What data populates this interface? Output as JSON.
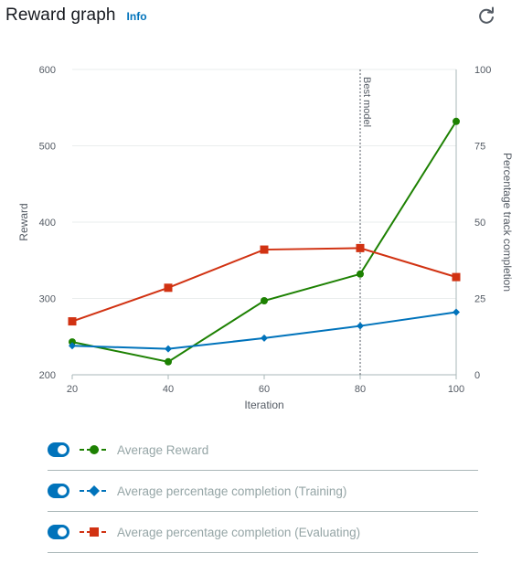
{
  "header": {
    "title": "Reward graph",
    "info_label": "Info"
  },
  "icons": {
    "refresh": "refresh-icon"
  },
  "legend": [
    {
      "id": "avg-reward",
      "label": "Average Reward",
      "color": "#1d8102",
      "marker": "circle",
      "enabled": true
    },
    {
      "id": "avg-pct-training",
      "label": "Average percentage completion (Training)",
      "color": "#0073bb",
      "marker": "diamond",
      "enabled": true
    },
    {
      "id": "avg-pct-evaluating",
      "label": "Average percentage completion (Evaluating)",
      "color": "#d13212",
      "marker": "square",
      "enabled": true
    }
  ],
  "chart_data": {
    "type": "line",
    "x": [
      20,
      40,
      60,
      80,
      100
    ],
    "xlabel": "Iteration",
    "ylabel": "Reward",
    "ylabel_right": "Percentage track completion",
    "xlim": [
      20,
      100
    ],
    "ylim": [
      200,
      600
    ],
    "ylim_right": [
      0,
      100
    ],
    "x_ticks": [
      20,
      40,
      60,
      80,
      100
    ],
    "y_ticks": [
      200,
      300,
      400,
      500,
      600
    ],
    "y_ticks_right": [
      0,
      25,
      50,
      75,
      100
    ],
    "grid": true,
    "annotation": {
      "x": 80,
      "label": "Best model"
    },
    "series": [
      {
        "name": "Average Reward",
        "axis": "left",
        "color": "#1d8102",
        "marker": "circle",
        "values": [
          243,
          217,
          297,
          332,
          532
        ]
      },
      {
        "name": "Average percentage completion (Training)",
        "axis": "right",
        "color": "#0073bb",
        "marker": "diamond",
        "values": [
          9.5,
          8.5,
          12,
          16,
          20.5
        ]
      },
      {
        "name": "Average percentage completion (Evaluating)",
        "axis": "right",
        "color": "#d13212",
        "marker": "square",
        "values": [
          17.5,
          28.5,
          41,
          41.5,
          32
        ]
      }
    ]
  }
}
